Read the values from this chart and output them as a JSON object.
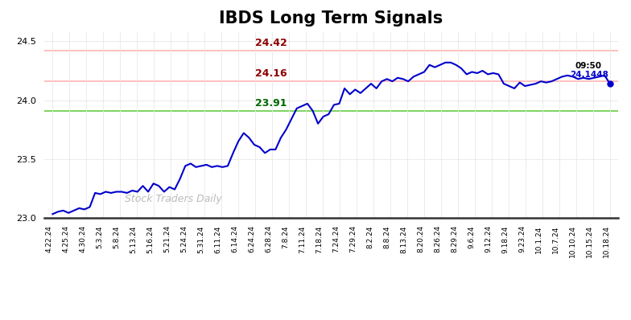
{
  "title": "IBDS Long Term Signals",
  "title_fontsize": 15,
  "title_fontweight": "bold",
  "background_color": "#ffffff",
  "line_color": "#0000cc",
  "line_width": 1.5,
  "watermark": "Stock Traders Daily",
  "watermark_color": "#bbbbbb",
  "hline_red_upper": 24.42,
  "hline_red_lower": 24.16,
  "hline_green": 23.91,
  "hline_red_upper_color": "#ffb3b3",
  "hline_red_lower_color": "#ffb3b3",
  "hline_green_color": "#66cc44",
  "label_red_upper": "24.42",
  "label_red_lower": "24.16",
  "label_green": "23.91",
  "label_red_color": "#8b0000",
  "label_green_color": "#006600",
  "annotation_time": "09:50",
  "annotation_value": "24.1448",
  "annotation_color_time": "#000000",
  "annotation_color_value": "#0000cc",
  "ylim": [
    23.0,
    24.58
  ],
  "yticks": [
    23.0,
    23.5,
    24.0,
    24.5
  ],
  "xlabel_rotation": 90,
  "x_labels": [
    "4.22.24",
    "4.25.24",
    "4.30.24",
    "5.3.24",
    "5.8.24",
    "5.13.24",
    "5.16.24",
    "5.21.24",
    "5.24.24",
    "5.31.24",
    "6.11.24",
    "6.14.24",
    "6.24.24",
    "6.28.24",
    "7.8.24",
    "7.11.24",
    "7.18.24",
    "7.24.24",
    "7.29.24",
    "8.2.24",
    "8.8.24",
    "8.13.24",
    "8.20.24",
    "8.26.24",
    "8.29.24",
    "9.6.24",
    "9.12.24",
    "9.18.24",
    "9.23.24",
    "10.1.24",
    "10.7.24",
    "10.10.24",
    "10.15.24",
    "10.18.24"
  ],
  "y_values": [
    23.03,
    23.05,
    23.06,
    23.04,
    23.06,
    23.08,
    23.07,
    23.09,
    23.21,
    23.2,
    23.22,
    23.21,
    23.22,
    23.22,
    23.21,
    23.23,
    23.22,
    23.27,
    23.22,
    23.29,
    23.27,
    23.22,
    23.26,
    23.24,
    23.33,
    23.44,
    23.46,
    23.43,
    23.44,
    23.45,
    23.43,
    23.44,
    23.43,
    23.44,
    23.55,
    23.65,
    23.72,
    23.68,
    23.62,
    23.6,
    23.55,
    23.58,
    23.58,
    23.68,
    23.75,
    23.84,
    23.93,
    23.95,
    23.97,
    23.91,
    23.8,
    23.86,
    23.88,
    23.96,
    23.97,
    24.1,
    24.05,
    24.09,
    24.06,
    24.1,
    24.14,
    24.1,
    24.16,
    24.18,
    24.16,
    24.19,
    24.18,
    24.16,
    24.2,
    24.22,
    24.24,
    24.3,
    24.28,
    24.3,
    24.32,
    24.32,
    24.3,
    24.27,
    24.22,
    24.24,
    24.23,
    24.25,
    24.22,
    24.23,
    24.22,
    24.14,
    24.12,
    24.1,
    24.15,
    24.12,
    24.13,
    24.14,
    24.16,
    24.15,
    24.16,
    24.18,
    24.2,
    24.21,
    24.2,
    24.18,
    24.19,
    24.18,
    24.19,
    24.2,
    24.21,
    24.14
  ]
}
